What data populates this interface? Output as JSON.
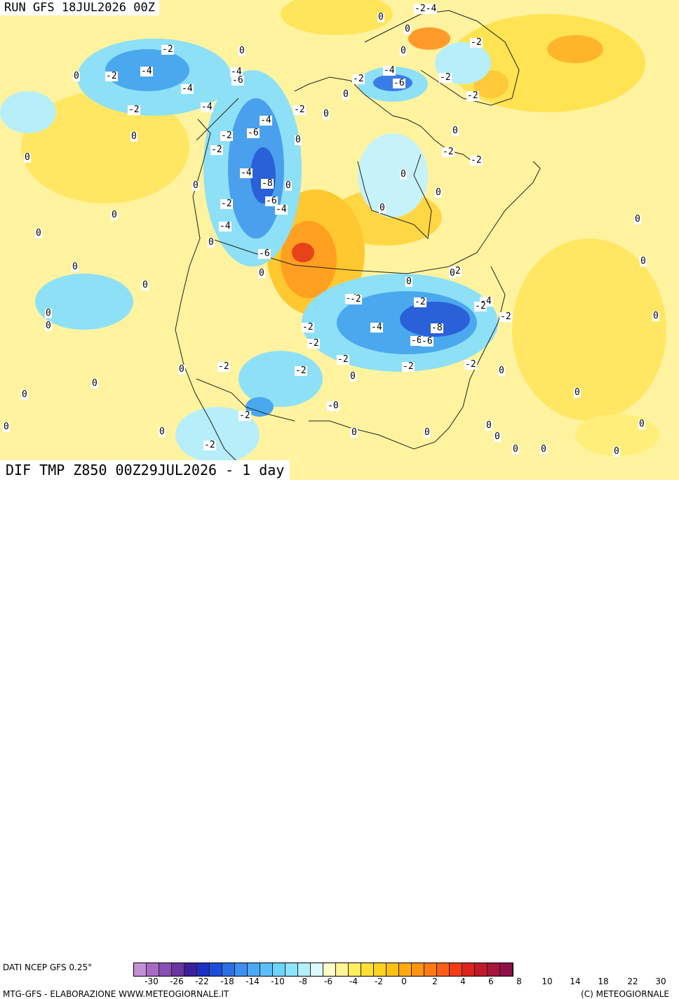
{
  "titles": {
    "run": "RUN GFS 18JUL2026 00Z",
    "bottom": "DIF TMP Z850 00Z29JUL2026 - 1 day"
  },
  "footer": {
    "data_source": "DATI NCEP GFS 0.25°",
    "credit_left": "MTG-GFS - ELABORAZIONE WWW.METEOGIORNALE.IT",
    "credit_right": "(C) METEOGIORNALE"
  },
  "colorbar": {
    "colors": [
      "#c58fd6",
      "#a86bc4",
      "#8a4fb3",
      "#6a35a0",
      "#3c1f9a",
      "#1d2fc4",
      "#1c4fd9",
      "#2f6fe6",
      "#3d8ff0",
      "#4aa8f5",
      "#5bc0f8",
      "#6fd4fb",
      "#8ee4fc",
      "#b5f0fd",
      "#dcfafe",
      "#fffcc8",
      "#fff598",
      "#ffee60",
      "#ffe033",
      "#ffd21f",
      "#ffc014",
      "#ffaa0f",
      "#ff9410",
      "#ff7a12",
      "#ff5e16",
      "#f23c18",
      "#dc241c",
      "#c21a2a",
      "#a8143a",
      "#8e1046"
    ],
    "tick_labels": [
      "-30",
      "-26",
      "-22",
      "-18",
      "-14",
      "-10",
      "-8",
      "-6",
      "-4",
      "-2",
      "0",
      "2",
      "4",
      "6",
      "8",
      "10",
      "14",
      "18",
      "22",
      "30"
    ]
  },
  "contour_labels": [
    "-2",
    "-2",
    "-4",
    "-4",
    "-4",
    "-6",
    "-2",
    "-4",
    "-2",
    "-2",
    "-4",
    "-6",
    "-2",
    "-2",
    "0",
    "-6",
    "-4",
    "-8",
    "-6",
    "-4",
    "-2",
    "-2",
    "-4",
    "-2",
    "-4",
    "-6",
    "-8",
    "-6",
    "-4",
    "-2",
    "-2",
    "-4",
    "-2",
    "-2",
    "-2",
    "-2",
    "-4",
    "-2",
    "-2",
    "-2",
    "-2",
    "-2",
    "0",
    "0",
    "0",
    "0",
    "0",
    "0",
    "0",
    "0",
    "0",
    "0",
    "0",
    "0",
    "0",
    "0",
    "0",
    "0",
    "0",
    "0",
    "0",
    "0",
    "0",
    "0",
    "0",
    "0",
    "0",
    "0",
    "0",
    "0",
    "-2-4",
    "-2",
    "-2",
    "-2",
    "-2",
    "-2",
    "-6",
    "0",
    "0",
    "0",
    "0",
    "-0",
    "-2",
    "0",
    "0",
    "0",
    "0",
    "0",
    "0",
    "0",
    "0",
    "0",
    "0",
    "0",
    "0"
  ]
}
